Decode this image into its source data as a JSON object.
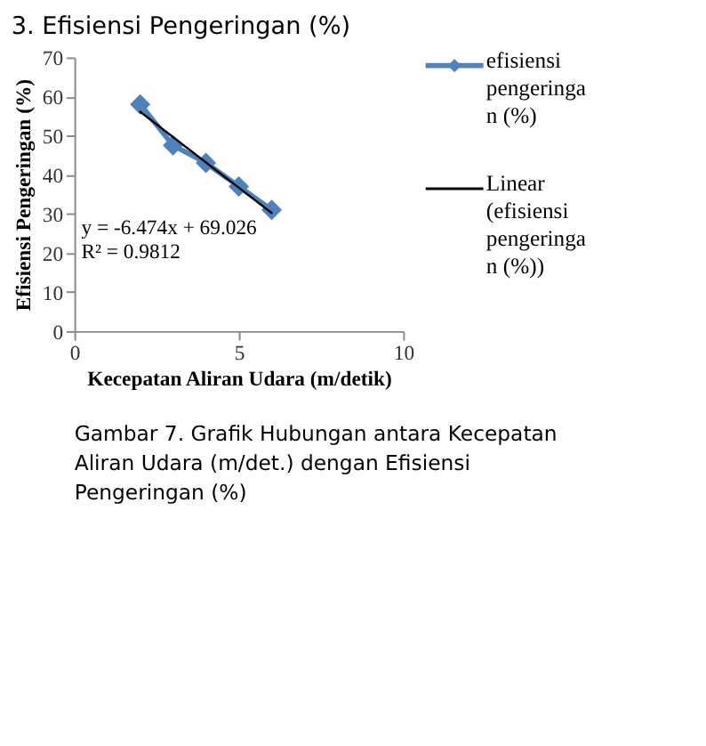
{
  "chart_data": {
    "type": "line",
    "title": "3.   Efisiensi Pengeringan (%)",
    "xlabel": "Kecepatan Aliran Udara (m/detik)",
    "ylabel": "Efisiensi Pengeringan (%)",
    "x": [
      2,
      3,
      4,
      5,
      6
    ],
    "series": [
      {
        "name": "efisiensi pengeringan (%)",
        "color": "#4f81bd",
        "values": [
          58,
          47.5,
          43,
          37,
          31
        ],
        "marker": "diamond"
      },
      {
        "name": "Linear (efisiensi pengeringan (%))",
        "color": "#000000",
        "type": "line",
        "x": [
          2,
          6
        ],
        "values": [
          56.1,
          30.2
        ],
        "marker": "none"
      }
    ],
    "xlim": [
      0,
      10
    ],
    "xticks": [
      0,
      5,
      10
    ],
    "ylim": [
      0,
      70
    ],
    "yticks": [
      0,
      10,
      20,
      30,
      40,
      50,
      60,
      70
    ],
    "grid": false,
    "legend": "right",
    "annotations": [
      "y = -6.474x + 69.026",
      "R² = 0.9812",
      "Gambar 7. Grafik Hubungan antara Kecepatan Aliran Udara (m/det.) dengan Efisiensi Pengeringan (%)"
    ]
  }
}
